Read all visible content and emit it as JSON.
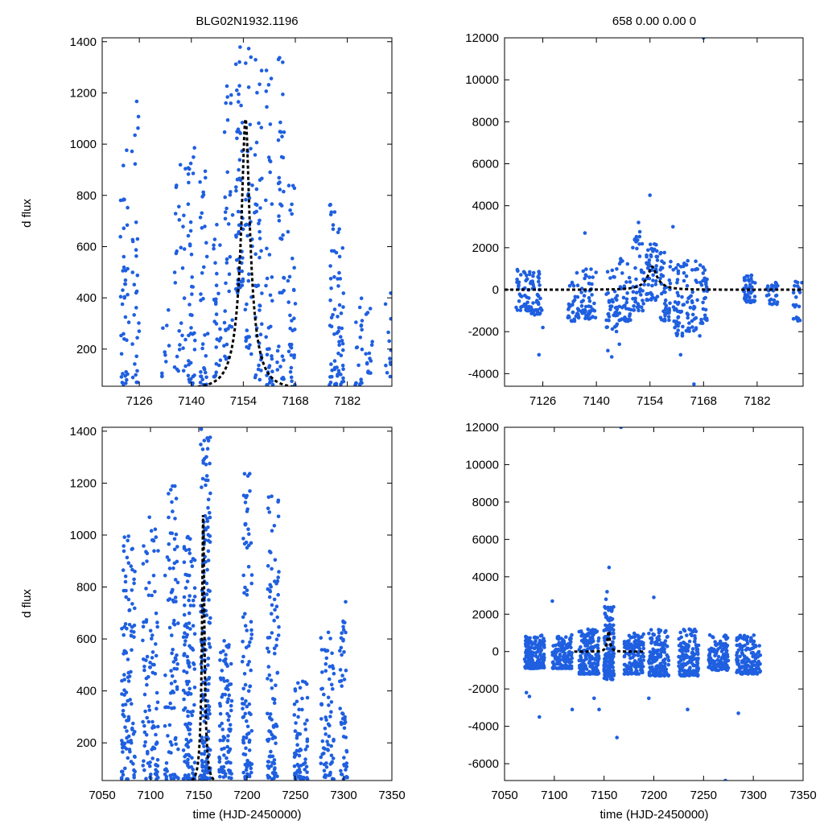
{
  "chart_data": [
    {
      "id": "top-left",
      "type": "scatter",
      "title": "BLG02N1932.1196",
      "xlabel": "",
      "ylabel": "d flux",
      "xlim": [
        7116,
        7194
      ],
      "ylim": [
        55,
        1415
      ],
      "xticks": [
        7126,
        7140,
        7154,
        7168,
        7182
      ],
      "yticks": [
        200,
        400,
        600,
        800,
        1000,
        1200,
        1400
      ],
      "xtick_labels": [
        "7126",
        "7140",
        "7154",
        "7168",
        "7182"
      ],
      "ytick_labels": [
        "200",
        "400",
        "600",
        "800",
        "1000",
        "1200",
        "1400"
      ],
      "point_color": "#1f5fe0",
      "model_color": "#000000",
      "model": {
        "t0": 7154.6,
        "tE": 5.2,
        "peak": 1100,
        "base": 45
      },
      "points": {
        "seed": 11,
        "groups": [
          {
            "t": 7122,
            "w": 1.2,
            "n": 40,
            "lo": 60,
            "hi": 1010
          },
          {
            "t": 7125,
            "w": 1.0,
            "n": 30,
            "lo": 70,
            "hi": 1175
          },
          {
            "t": 7133,
            "w": 1.0,
            "n": 10,
            "lo": 90,
            "hi": 360
          },
          {
            "t": 7137,
            "w": 1.5,
            "n": 30,
            "lo": 90,
            "hi": 1115
          },
          {
            "t": 7140,
            "w": 1.0,
            "n": 40,
            "lo": 60,
            "hi": 1000
          },
          {
            "t": 7143.5,
            "w": 1.2,
            "n": 35,
            "lo": 60,
            "hi": 930
          },
          {
            "t": 7147,
            "w": 1.0,
            "n": 30,
            "lo": 90,
            "hi": 720
          },
          {
            "t": 7150,
            "w": 1.2,
            "n": 35,
            "lo": 160,
            "hi": 1280
          },
          {
            "t": 7153,
            "w": 1.0,
            "n": 55,
            "lo": 420,
            "hi": 1415
          },
          {
            "t": 7155.5,
            "w": 1.0,
            "n": 35,
            "lo": 180,
            "hi": 1380
          },
          {
            "t": 7158,
            "w": 1.0,
            "n": 45,
            "lo": 80,
            "hi": 1330
          },
          {
            "t": 7161,
            "w": 1.0,
            "n": 40,
            "lo": 60,
            "hi": 1300
          },
          {
            "t": 7164,
            "w": 1.0,
            "n": 40,
            "lo": 80,
            "hi": 1360
          },
          {
            "t": 7167,
            "w": 1.0,
            "n": 35,
            "lo": 60,
            "hi": 920
          },
          {
            "t": 7178,
            "w": 0.8,
            "n": 30,
            "lo": 60,
            "hi": 780
          },
          {
            "t": 7180,
            "w": 1.0,
            "n": 40,
            "lo": 60,
            "hi": 690
          },
          {
            "t": 7185,
            "w": 1.0,
            "n": 20,
            "lo": 60,
            "hi": 440
          },
          {
            "t": 7188,
            "w": 1.0,
            "n": 15,
            "lo": 90,
            "hi": 380
          },
          {
            "t": 7193,
            "w": 0.8,
            "n": 12,
            "lo": 90,
            "hi": 440
          }
        ]
      }
    },
    {
      "id": "top-right",
      "type": "scatter",
      "title": "658  0.00  0.00  0",
      "xlabel": "",
      "ylabel": "",
      "xlim": [
        7116,
        7194
      ],
      "ylim": [
        -4600,
        12000
      ],
      "xticks": [
        7126,
        7140,
        7154,
        7168,
        7182
      ],
      "yticks": [
        -4000,
        -2000,
        0,
        2000,
        4000,
        6000,
        8000,
        10000,
        12000
      ],
      "xtick_labels": [
        "7126",
        "7140",
        "7154",
        "7168",
        "7182"
      ],
      "ytick_labels": [
        "-4000",
        "-2000",
        "0",
        "2000",
        "4000",
        "6000",
        "8000",
        "10000",
        "12000"
      ],
      "point_color": "#1f5fe0",
      "model_color": "#000000",
      "model": {
        "t0": 7154.6,
        "tE": 5.2,
        "peak": 1100,
        "base": 0
      },
      "points": {
        "seed": 23,
        "groups": [
          {
            "t": 7121,
            "w": 2.0,
            "n": 50,
            "lo": -1000,
            "hi": 1000
          },
          {
            "t": 7124.5,
            "w": 1.5,
            "n": 40,
            "lo": -1200,
            "hi": 900
          },
          {
            "t": 7134,
            "w": 1.5,
            "n": 35,
            "lo": -1500,
            "hi": 1000
          },
          {
            "t": 7138,
            "w": 2.0,
            "n": 50,
            "lo": -1400,
            "hi": 1000
          },
          {
            "t": 7144,
            "w": 1.5,
            "n": 40,
            "lo": -2000,
            "hi": 1200
          },
          {
            "t": 7147.5,
            "w": 1.5,
            "n": 40,
            "lo": -1500,
            "hi": 1500
          },
          {
            "t": 7151,
            "w": 1.5,
            "n": 45,
            "lo": -1000,
            "hi": 2800
          },
          {
            "t": 7154.5,
            "w": 1.5,
            "n": 55,
            "lo": -500,
            "hi": 2200
          },
          {
            "t": 7158,
            "w": 1.5,
            "n": 45,
            "lo": -1500,
            "hi": 1800
          },
          {
            "t": 7161.5,
            "w": 1.5,
            "n": 45,
            "lo": -2200,
            "hi": 1600
          },
          {
            "t": 7165,
            "w": 1.5,
            "n": 40,
            "lo": -2000,
            "hi": 1500
          },
          {
            "t": 7168,
            "w": 1.0,
            "n": 30,
            "lo": -1600,
            "hi": 1200
          },
          {
            "t": 7180,
            "w": 1.5,
            "n": 45,
            "lo": -600,
            "hi": 700
          },
          {
            "t": 7186,
            "w": 1.5,
            "n": 25,
            "lo": -700,
            "hi": 500
          },
          {
            "t": 7192.5,
            "w": 1.2,
            "n": 20,
            "lo": -1500,
            "hi": 500
          }
        ],
        "extra": [
          [
            7126,
            -1800
          ],
          [
            7125,
            -3100
          ],
          [
            7137,
            2700
          ],
          [
            7143,
            -2900
          ],
          [
            7146,
            -2600
          ],
          [
            7151,
            3200
          ],
          [
            7154,
            4500
          ],
          [
            7160,
            3000
          ],
          [
            7162,
            -3100
          ],
          [
            7165.5,
            -4500
          ],
          [
            7168,
            12000
          ],
          [
            7144,
            -3200
          ],
          [
            7167,
            -2200
          ]
        ]
      }
    },
    {
      "id": "bottom-left",
      "type": "scatter",
      "title": "",
      "xlabel": "time (HJD-2450000)",
      "ylabel": "d flux",
      "xlim": [
        7050,
        7350
      ],
      "ylim": [
        55,
        1415
      ],
      "xticks": [
        7050,
        7100,
        7150,
        7200,
        7250,
        7300,
        7350
      ],
      "yticks": [
        200,
        400,
        600,
        800,
        1000,
        1200,
        1400
      ],
      "xtick_labels": [
        "7050",
        "7100",
        "7150",
        "7200",
        "7250",
        "7300",
        "7350"
      ],
      "ytick_labels": [
        "200",
        "400",
        "600",
        "800",
        "1000",
        "1200",
        "1400"
      ],
      "point_color": "#1f5fe0",
      "model_color": "#000000",
      "model": {
        "t0": 7154.6,
        "tE": 5.2,
        "peak": 1100,
        "base": 45
      },
      "points": {
        "seed": 37,
        "groups": [
          {
            "t": 7077,
            "w": 7,
            "n": 110,
            "lo": 60,
            "hi": 1000
          },
          {
            "t": 7100,
            "w": 8,
            "n": 100,
            "lo": 60,
            "hi": 1090
          },
          {
            "t": 7122,
            "w": 7,
            "n": 90,
            "lo": 60,
            "hi": 1230
          },
          {
            "t": 7140,
            "w": 6,
            "n": 130,
            "lo": 60,
            "hi": 1000
          },
          {
            "t": 7157,
            "w": 5,
            "n": 170,
            "lo": 60,
            "hi": 1410
          },
          {
            "t": 7178,
            "w": 7,
            "n": 90,
            "lo": 60,
            "hi": 600
          },
          {
            "t": 7200,
            "w": 5,
            "n": 100,
            "lo": 60,
            "hi": 1250
          },
          {
            "t": 7227,
            "w": 6,
            "n": 100,
            "lo": 60,
            "hi": 1150
          },
          {
            "t": 7256,
            "w": 7,
            "n": 70,
            "lo": 60,
            "hi": 440
          },
          {
            "t": 7283,
            "w": 7,
            "n": 70,
            "lo": 60,
            "hi": 640
          },
          {
            "t": 7300,
            "w": 4,
            "n": 50,
            "lo": 60,
            "hi": 760
          }
        ]
      }
    },
    {
      "id": "bottom-right",
      "type": "scatter",
      "title": "",
      "xlabel": "time (HJD-2450000)",
      "ylabel": "",
      "xlim": [
        7050,
        7350
      ],
      "ylim": [
        -6900,
        12000
      ],
      "xticks": [
        7050,
        7100,
        7150,
        7200,
        7250,
        7300,
        7350
      ],
      "yticks": [
        -6000,
        -4000,
        -2000,
        0,
        2000,
        4000,
        6000,
        8000,
        10000,
        12000
      ],
      "xtick_labels": [
        "7050",
        "7100",
        "7150",
        "7200",
        "7250",
        "7300",
        "7350"
      ],
      "ytick_labels": [
        "-6000",
        "-4000",
        "-2000",
        "0",
        "2000",
        "4000",
        "6000",
        "8000",
        "10000",
        "12000"
      ],
      "point_color": "#1f5fe0",
      "model_color": "#000000",
      "model": {
        "t0": 7154.6,
        "tE": 5.2,
        "peak": 1100,
        "base": 0,
        "range": [
          7120,
          7190
        ]
      },
      "points": {
        "seed": 53,
        "groups": [
          {
            "t": 7080,
            "w": 10,
            "n": 180,
            "lo": -900,
            "hi": 900
          },
          {
            "t": 7108,
            "w": 10,
            "n": 150,
            "lo": -900,
            "hi": 900
          },
          {
            "t": 7135,
            "w": 10,
            "n": 170,
            "lo": -1200,
            "hi": 1200
          },
          {
            "t": 7155,
            "w": 5,
            "n": 150,
            "lo": -1500,
            "hi": 2400
          },
          {
            "t": 7180,
            "w": 10,
            "n": 150,
            "lo": -1200,
            "hi": 1000
          },
          {
            "t": 7205,
            "w": 10,
            "n": 170,
            "lo": -1300,
            "hi": 1200
          },
          {
            "t": 7235,
            "w": 10,
            "n": 160,
            "lo": -1300,
            "hi": 1200
          },
          {
            "t": 7265,
            "w": 10,
            "n": 130,
            "lo": -1000,
            "hi": 900
          },
          {
            "t": 7295,
            "w": 12,
            "n": 140,
            "lo": -1200,
            "hi": 900
          }
        ],
        "extra": [
          [
            7072,
            -2200
          ],
          [
            7075,
            -2400
          ],
          [
            7085,
            -3500
          ],
          [
            7098,
            2700
          ],
          [
            7118,
            -3100
          ],
          [
            7140,
            -2500
          ],
          [
            7145,
            -3100
          ],
          [
            7153,
            3200
          ],
          [
            7155,
            4500
          ],
          [
            7163,
            -4600
          ],
          [
            7167,
            12000
          ],
          [
            7200,
            2900
          ],
          [
            7234,
            -3100
          ],
          [
            7272,
            -6900
          ],
          [
            7285,
            -3300
          ],
          [
            7195,
            -2500
          ],
          [
            7152,
            2800
          ]
        ]
      }
    }
  ]
}
